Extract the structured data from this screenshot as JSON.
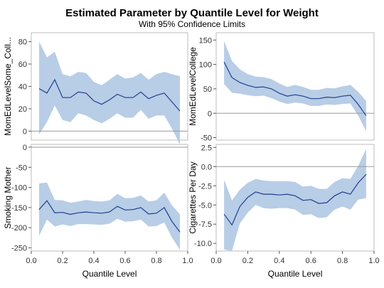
{
  "title": "Estimated Parameter by Quantile Level for Weight",
  "subtitle": "With 95% Confidence Limits",
  "colors": {
    "band": "#b8cde6",
    "line": "#1f3f8f",
    "ref": "#9a9a9a",
    "frame": "#bdbdbd",
    "grid": "#e6e6e6"
  },
  "chart_data": [
    {
      "type": "line",
      "panel": "top-left",
      "ylabel": "MomEdLevelSome_Coll...",
      "xlabel": "",
      "xlim": [
        0.0,
        1.0
      ],
      "ylim": [
        -8,
        88
      ],
      "yticks": [
        0,
        20,
        40,
        60,
        80
      ],
      "xticks": [],
      "x": [
        0.05,
        0.1,
        0.15,
        0.2,
        0.25,
        0.3,
        0.35,
        0.4,
        0.45,
        0.5,
        0.55,
        0.6,
        0.65,
        0.7,
        0.75,
        0.8,
        0.85,
        0.9,
        0.95
      ],
      "estimate": [
        38,
        34,
        46,
        30,
        30,
        35,
        34,
        27,
        24,
        28,
        33,
        30,
        30,
        35,
        29,
        32,
        34,
        26,
        18
      ],
      "lower": [
        -3,
        8,
        23,
        10,
        8,
        16,
        14,
        10,
        7,
        11,
        16,
        12,
        12,
        19,
        11,
        14,
        14,
        2,
        -12
      ],
      "upper": [
        80,
        66,
        71,
        51,
        49,
        53,
        52,
        44,
        41,
        46,
        51,
        47,
        48,
        52,
        46,
        51,
        53,
        51,
        49
      ]
    },
    {
      "type": "line",
      "panel": "top-right",
      "ylabel": "MomEdLevelCollege",
      "xlabel": "",
      "xlim": [
        0.0,
        1.0
      ],
      "ylim": [
        -55,
        165
      ],
      "yticks": [
        -50,
        0,
        50,
        100,
        150
      ],
      "xticks": [],
      "x": [
        0.05,
        0.1,
        0.15,
        0.2,
        0.25,
        0.3,
        0.35,
        0.4,
        0.45,
        0.5,
        0.55,
        0.6,
        0.65,
        0.7,
        0.75,
        0.8,
        0.85,
        0.9,
        0.95
      ],
      "estimate": [
        105,
        73,
        63,
        57,
        53,
        54,
        50,
        41,
        35,
        38,
        35,
        30,
        30,
        33,
        32,
        35,
        37,
        18,
        -5
      ],
      "lower": [
        60,
        42,
        40,
        37,
        35,
        36,
        31,
        24,
        19,
        22,
        20,
        15,
        15,
        18,
        17,
        19,
        20,
        -5,
        -37
      ],
      "upper": [
        148,
        107,
        90,
        80,
        75,
        74,
        70,
        61,
        54,
        58,
        54,
        48,
        48,
        52,
        51,
        55,
        58,
        44,
        25
      ]
    },
    {
      "type": "line",
      "panel": "bottom-left",
      "ylabel": "Smoking Mother",
      "xlabel": "Quantile Level",
      "xlim": [
        0.0,
        1.0
      ],
      "ylim": [
        -258,
        7
      ],
      "yticks": [
        -250,
        -200,
        -150,
        -100,
        -50,
        0
      ],
      "xticks": [
        0.0,
        0.2,
        0.4,
        0.6,
        0.8,
        1.0
      ],
      "x": [
        0.05,
        0.1,
        0.15,
        0.2,
        0.25,
        0.3,
        0.35,
        0.4,
        0.45,
        0.5,
        0.55,
        0.6,
        0.65,
        0.7,
        0.75,
        0.8,
        0.85,
        0.9,
        0.95
      ],
      "estimate": [
        -155,
        -133,
        -163,
        -162,
        -167,
        -163,
        -161,
        -163,
        -164,
        -161,
        -147,
        -156,
        -155,
        -150,
        -166,
        -164,
        -150,
        -185,
        -211
      ],
      "lower": [
        -220,
        -180,
        -197,
        -192,
        -196,
        -191,
        -191,
        -192,
        -193,
        -190,
        -178,
        -185,
        -184,
        -180,
        -197,
        -196,
        -187,
        -225,
        -255
      ],
      "upper": [
        -90,
        -88,
        -131,
        -132,
        -138,
        -135,
        -131,
        -134,
        -135,
        -132,
        -116,
        -127,
        -126,
        -120,
        -135,
        -132,
        -113,
        -145,
        -167
      ]
    },
    {
      "type": "line",
      "panel": "bottom-right",
      "ylabel": "Cigarettes Per Day",
      "xlabel": "Quantile Level",
      "xlim": [
        0.0,
        1.0
      ],
      "ylim": [
        -11.0,
        2.9
      ],
      "yticks": [
        -10.0,
        -7.5,
        -5.0,
        -2.5,
        0.0,
        2.5
      ],
      "xticks": [
        0.0,
        0.2,
        0.4,
        0.6,
        0.8,
        1.0
      ],
      "x": [
        0.05,
        0.1,
        0.15,
        0.2,
        0.25,
        0.3,
        0.35,
        0.4,
        0.45,
        0.5,
        0.55,
        0.6,
        0.65,
        0.7,
        0.75,
        0.8,
        0.85,
        0.9,
        0.95
      ],
      "estimate": [
        -6.2,
        -7.6,
        -5.2,
        -4.0,
        -3.3,
        -3.6,
        -3.6,
        -3.7,
        -3.6,
        -3.8,
        -4.4,
        -4.3,
        -4.8,
        -4.7,
        -3.8,
        -3.3,
        -3.6,
        -2.1,
        -1.0
      ],
      "lower": [
        -10.8,
        -11.0,
        -7.4,
        -6.0,
        -5.0,
        -5.4,
        -5.5,
        -5.4,
        -5.4,
        -5.6,
        -6.3,
        -6.2,
        -6.7,
        -6.6,
        -5.6,
        -5.2,
        -5.6,
        -4.3,
        -4.1
      ],
      "upper": [
        -1.7,
        -4.4,
        -3.0,
        -2.1,
        -1.6,
        -1.8,
        -1.9,
        -1.9,
        -1.9,
        -2.0,
        -2.6,
        -2.5,
        -2.9,
        -2.9,
        -2.0,
        -1.5,
        -1.6,
        0.1,
        2.3
      ]
    }
  ]
}
